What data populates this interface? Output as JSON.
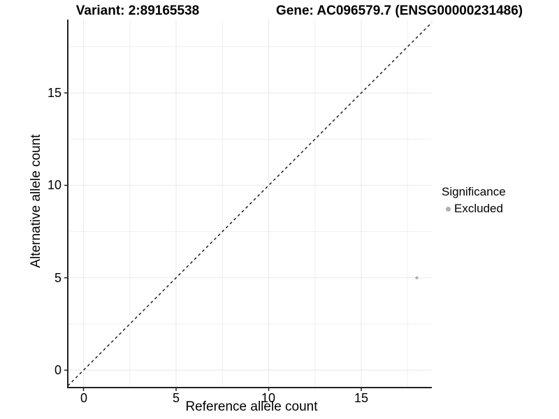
{
  "titles": {
    "variant": "Variant: 2:89165538",
    "gene": "Gene: AC096579.7 (ENSG00000231486)"
  },
  "chart_data": {
    "type": "scatter",
    "xlabel": "Reference allele count",
    "ylabel": "Alternative allele count",
    "xlim": [
      -0.85,
      18.81
    ],
    "ylim": [
      -0.94,
      18.97
    ],
    "x_ticks": [
      0,
      5,
      10,
      15
    ],
    "y_ticks": [
      0,
      5,
      10,
      15
    ],
    "x_minor": [
      2.5,
      7.5,
      12.5,
      17.5
    ],
    "y_minor": [
      2.5,
      7.5,
      12.5,
      17.5
    ],
    "grid": true,
    "reference_line": {
      "type": "abline",
      "slope": 1,
      "intercept": 0,
      "style": "dashed",
      "color": "#111111"
    },
    "series": [
      {
        "name": "Excluded",
        "color": "#b0b0b0",
        "point_radius": 2.2,
        "points": [
          [
            18,
            5
          ]
        ]
      }
    ],
    "legend": {
      "title": "Significance",
      "position": "right",
      "entries": [
        {
          "label": "Excluded",
          "color": "#b0b0b0"
        }
      ]
    },
    "style": {
      "grid_major": "#e8e8e8",
      "grid_minor": "#efefef",
      "axis_color": "#222222",
      "background": "#ffffff"
    }
  }
}
